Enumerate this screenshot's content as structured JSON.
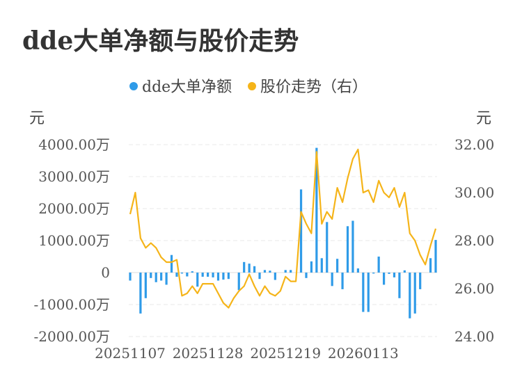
{
  "title": "dde大单净额与股价走势",
  "chart_data": {
    "type": "bar+line",
    "legend": [
      {
        "name": "dde大单净额",
        "color": "#2f9be8"
      },
      {
        "name": "股价走势（右）",
        "color": "#f5b419"
      }
    ],
    "legend_position": "top",
    "grid": true,
    "left_unit": "元",
    "right_unit": "元",
    "left_axis": {
      "min": -2000,
      "max": 4000,
      "ticks": [
        4000,
        3000,
        2000,
        1000,
        0,
        -1000,
        -2000
      ],
      "tick_labels": [
        "4000.00万",
        "3000.00万",
        "2000.00万",
        "1000.00万",
        "0",
        "-1000.00万",
        "-2000.00万"
      ]
    },
    "right_axis": {
      "min": 24,
      "max": 32,
      "ticks": [
        32,
        30,
        28,
        26,
        24
      ],
      "tick_labels": [
        "32.00",
        "30.00",
        "28.00",
        "26.00",
        "24.00"
      ]
    },
    "x_tick_labels": [
      "20251107",
      "20251128",
      "20251219",
      "20260113"
    ],
    "x_tick_index": [
      0,
      15,
      30,
      45
    ],
    "series": [
      {
        "name": "dde大单净额",
        "type": "bar",
        "axis": "left",
        "values": [
          -250,
          0,
          -1280,
          -800,
          -170,
          -300,
          -250,
          -380,
          550,
          -130,
          -30,
          -120,
          40,
          -440,
          -130,
          -130,
          -150,
          -250,
          -220,
          -200,
          0,
          -550,
          330,
          280,
          200,
          -200,
          80,
          60,
          -230,
          0,
          80,
          80,
          0,
          2600,
          -170,
          350,
          3900,
          450,
          1580,
          -420,
          430,
          -520,
          1450,
          1620,
          130,
          -1230,
          -1230,
          -30,
          500,
          -380,
          -40,
          -150,
          -800,
          70,
          -1430,
          -1280,
          -520,
          0,
          450,
          1020
        ]
      },
      {
        "name": "股价走势（右）",
        "type": "line",
        "axis": "right",
        "values": [
          29.1,
          30.0,
          28.1,
          27.7,
          27.9,
          27.7,
          27.3,
          27.1,
          27.1,
          27.2,
          25.7,
          25.8,
          26.1,
          25.8,
          26.2,
          26.2,
          26.2,
          25.8,
          25.4,
          25.2,
          25.6,
          25.9,
          26.1,
          26.6,
          26.1,
          25.7,
          26.1,
          25.8,
          25.7,
          25.9,
          26.5,
          26.3,
          26.3,
          29.2,
          28.7,
          28.3,
          31.7,
          28.7,
          29.2,
          28.9,
          30.2,
          29.6,
          30.6,
          31.4,
          31.8,
          30.0,
          30.1,
          29.6,
          30.5,
          30.0,
          29.8,
          30.2,
          29.4,
          30.0,
          28.3,
          28.0,
          27.4,
          27.0,
          27.8,
          28.5
        ]
      }
    ]
  }
}
